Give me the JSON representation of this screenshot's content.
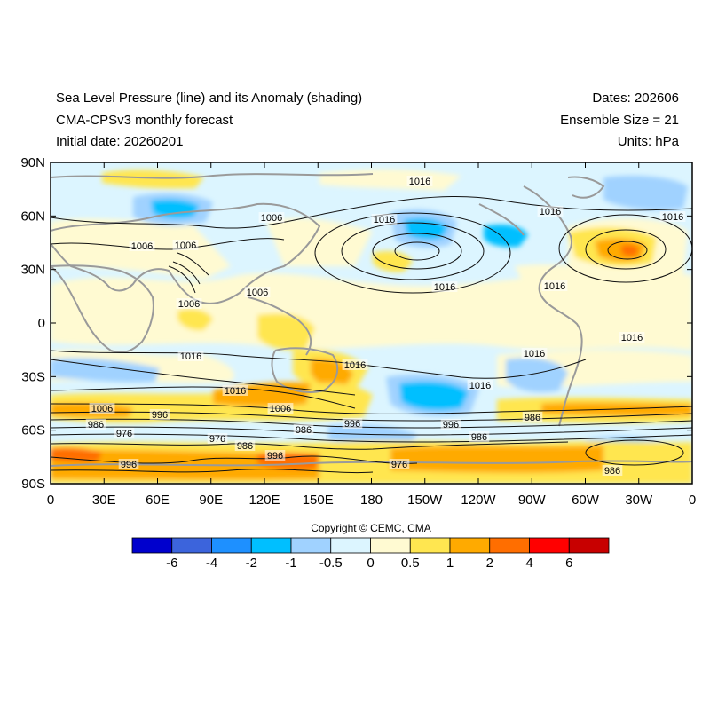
{
  "header": {
    "title_line1": "Sea Level Pressure (line) and its Anomaly (shading)",
    "title_line2": "CMA-CPSv3 monthly forecast",
    "title_line3": "Initial date: 20260201",
    "dates": "Dates: 202606",
    "ensemble": "Ensemble Size = 21",
    "units": "Units: hPa"
  },
  "lat_ticks": [
    "90N",
    "60N",
    "30N",
    "0",
    "30S",
    "60S",
    "90S"
  ],
  "lon_ticks": [
    "0",
    "30E",
    "60E",
    "90E",
    "120E",
    "150E",
    "180",
    "150W",
    "120W",
    "90W",
    "60W",
    "30W",
    "0"
  ],
  "contour_labels": [
    "1016",
    "1006",
    "1016",
    "1016",
    "1016",
    "1006",
    "1006",
    "1006",
    "1006",
    "1016",
    "1016",
    "1016",
    "1016",
    "1016",
    "1016",
    "1016",
    "1016",
    "1006",
    "996",
    "986",
    "976",
    "996",
    "1006",
    "986",
    "996",
    "996",
    "986",
    "976",
    "986",
    "996",
    "976",
    "986",
    "986"
  ],
  "copyright": "Copyright © CEMC, CMA",
  "colorbar": {
    "colors": [
      "#0000cd",
      "#3c64dc",
      "#1e90ff",
      "#00bfff",
      "#a0d2ff",
      "#dcf5ff",
      "#fffad2",
      "#ffe650",
      "#ffaa00",
      "#ff6e00",
      "#ff0000",
      "#c80000"
    ],
    "labels": [
      "-6",
      "-4",
      "-2",
      "-1",
      "-0.5",
      "0",
      "0.5",
      "1",
      "2",
      "4",
      "6"
    ]
  }
}
